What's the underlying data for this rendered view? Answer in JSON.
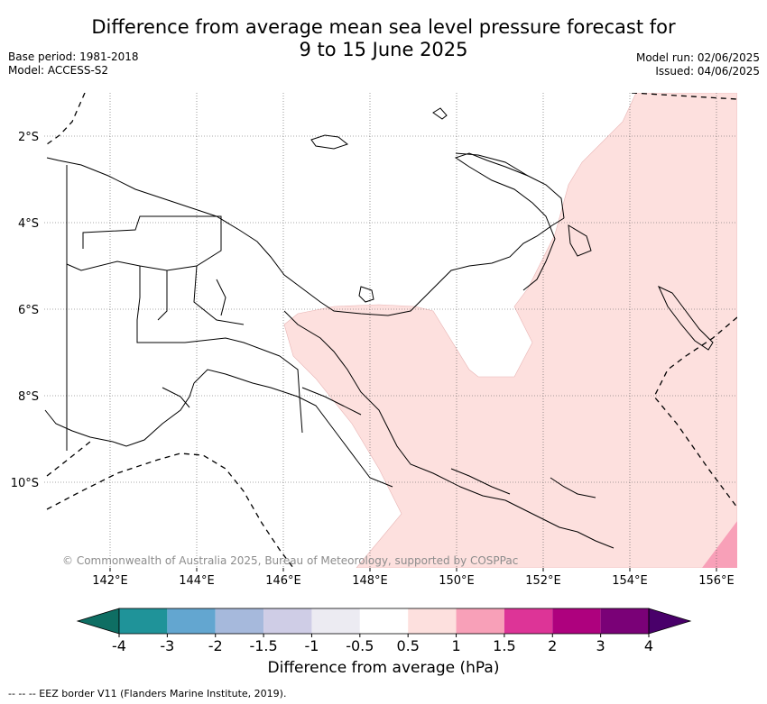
{
  "title_line1": "Difference from average mean sea level pressure forecast for",
  "title_line2": "9 to 15 June 2025",
  "base_period": "Base period: 1981-2018",
  "model": "Model: ACCESS-S2",
  "model_run": "Model run: 02/06/2025",
  "issued": "Issued: 04/06/2025",
  "credit": "© Commonwealth of Australia 2025, Bureau of Meteorology, supported by COSPPac",
  "lat_labels": [
    "2°S",
    "4°S",
    "6°S",
    "8°S",
    "10°S"
  ],
  "lon_labels": [
    "142°E",
    "144°E",
    "146°E",
    "148°E",
    "150°E",
    "152°E",
    "154°E",
    "156°E"
  ],
  "colorbar": {
    "label": "Difference from average (hPa)",
    "ticks": [
      "-4",
      "-3",
      "-2",
      "-1.5",
      "-1",
      "-0.5",
      "0.5",
      "1",
      "1.5",
      "2",
      "3",
      "4"
    ],
    "colors": [
      "#0e6e63",
      "#1f9399",
      "#63a6d0",
      "#a6b9dc",
      "#cfcde6",
      "#ecebf2",
      "#ffffff",
      "#fde0de",
      "#f8a0b8",
      "#dd3497",
      "#ae017e",
      "#7a0177",
      "#49006a"
    ]
  },
  "footer": "--  --  -- EEZ border V11 (Flanders Marine Institute, 2019)."
}
